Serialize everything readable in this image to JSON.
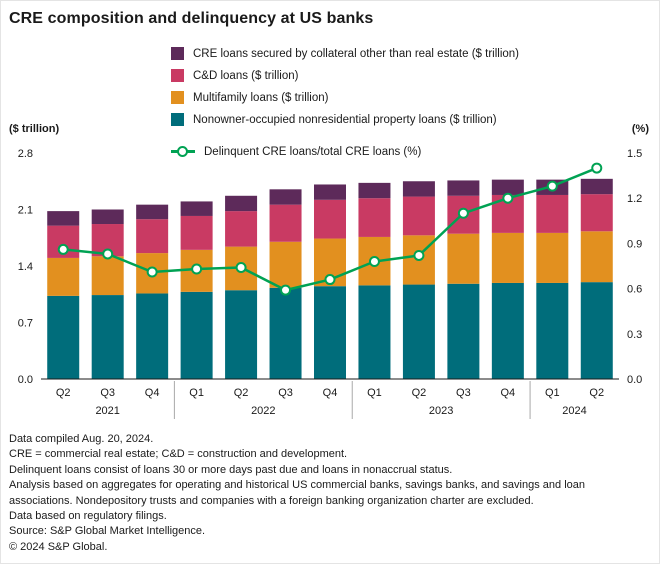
{
  "title": "CRE composition and delinquency at US banks",
  "axes": {
    "left_unit": "($ trillion)",
    "right_unit": "(%)",
    "left_ticks": [
      "0.0",
      "0.7",
      "1.4",
      "2.1",
      "2.8"
    ],
    "right_ticks": [
      "0.0",
      "0.3",
      "0.6",
      "0.9",
      "1.2",
      "1.5"
    ]
  },
  "legend": [
    {
      "label": "CRE loans secured by collateral other than real estate ($ trillion)",
      "color": "#5d2a5a",
      "type": "square"
    },
    {
      "label": "C&D loans ($ trillion)",
      "color": "#c93a63",
      "type": "square"
    },
    {
      "label": "Multifamily loans ($ trillion)",
      "color": "#e2901f",
      "type": "square"
    },
    {
      "label": "Nonowner-occupied nonresidential property loans ($ trillion)",
      "color": "#006d7b",
      "type": "square"
    },
    {
      "label": "Delinquent CRE loans/total CRE loans (%)",
      "color": "#00a253",
      "type": "line-marker"
    }
  ],
  "chart_data": {
    "type": "stacked-bar-with-line",
    "title": "CRE composition and delinquency at US banks",
    "categories": [
      "Q2",
      "Q3",
      "Q4",
      "Q1",
      "Q2",
      "Q3",
      "Q4",
      "Q1",
      "Q2",
      "Q3",
      "Q4",
      "Q1",
      "Q2"
    ],
    "year_groups": [
      {
        "label": "2021",
        "count": 3
      },
      {
        "label": "2022",
        "count": 4
      },
      {
        "label": "2023",
        "count": 4
      },
      {
        "label": "2024",
        "count": 2
      }
    ],
    "bar_series": [
      {
        "name": "Nonowner-occupied nonresidential property loans ($ trillion)",
        "color": "#006d7b",
        "values": [
          1.03,
          1.04,
          1.06,
          1.08,
          1.1,
          1.13,
          1.15,
          1.16,
          1.17,
          1.18,
          1.19,
          1.19,
          1.2
        ]
      },
      {
        "name": "Multifamily loans ($ trillion)",
        "color": "#e2901f",
        "values": [
          0.47,
          0.48,
          0.5,
          0.52,
          0.54,
          0.57,
          0.59,
          0.6,
          0.61,
          0.62,
          0.62,
          0.62,
          0.63
        ]
      },
      {
        "name": "C&D loans ($ trillion)",
        "color": "#c93a63",
        "values": [
          0.4,
          0.4,
          0.42,
          0.42,
          0.44,
          0.46,
          0.48,
          0.48,
          0.48,
          0.47,
          0.47,
          0.47,
          0.46
        ]
      },
      {
        "name": "CRE loans secured by collateral other than real estate ($ trillion)",
        "color": "#5d2a5a",
        "values": [
          0.18,
          0.18,
          0.18,
          0.18,
          0.19,
          0.19,
          0.19,
          0.19,
          0.19,
          0.19,
          0.19,
          0.19,
          0.19
        ]
      }
    ],
    "line_series": {
      "name": "Delinquent CRE loans/total CRE loans (%)",
      "color": "#00a253",
      "values": [
        0.86,
        0.83,
        0.71,
        0.73,
        0.74,
        0.59,
        0.66,
        0.78,
        0.82,
        1.1,
        1.2,
        1.28,
        1.4
      ]
    },
    "left_axis": {
      "label": "($ trillion)",
      "min": 0,
      "max": 2.8
    },
    "right_axis": {
      "label": "(%)",
      "min": 0,
      "max": 1.5
    },
    "grid": false,
    "legend_position": "top"
  },
  "footnotes": [
    "Data compiled Aug. 20, 2024.",
    "CRE = commercial real estate; C&D = construction and development.",
    "Delinquent loans consist of loans 30 or more days past due and loans in nonaccrual status.",
    "Analysis based on aggregates for operating and historical US commercial banks, savings banks, and savings and loan associations. Nondepository trusts and companies with a foreign banking organization charter are excluded.",
    "Data based on regulatory filings.",
    "Source: S&P Global Market Intelligence.",
    "© 2024 S&P Global."
  ]
}
